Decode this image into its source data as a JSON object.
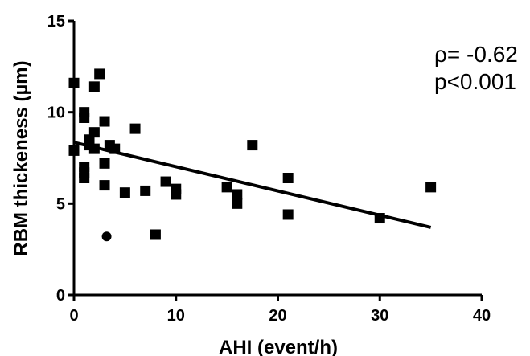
{
  "chart_data": {
    "type": "scatter",
    "title": "",
    "xlabel": "AHI (event/h)",
    "ylabel": "RBM thickeness (µm)",
    "xlim": [
      0,
      40
    ],
    "ylim": [
      0,
      15
    ],
    "xticks": [
      "0",
      "10",
      "20",
      "30",
      "40"
    ],
    "yticks": [
      "0",
      "5",
      "10",
      "15"
    ],
    "grid": false,
    "annotations": [
      "ρ= -0.62",
      "p<0.001"
    ],
    "series": [
      {
        "marker": "square",
        "points": [
          {
            "x": 0.0,
            "y": 11.6
          },
          {
            "x": 0.0,
            "y": 7.9
          },
          {
            "x": 1.0,
            "y": 10.0
          },
          {
            "x": 1.0,
            "y": 9.7
          },
          {
            "x": 1.0,
            "y": 7.0
          },
          {
            "x": 1.0,
            "y": 6.7
          },
          {
            "x": 1.0,
            "y": 6.4
          },
          {
            "x": 1.5,
            "y": 8.5
          },
          {
            "x": 1.5,
            "y": 8.2
          },
          {
            "x": 2.0,
            "y": 11.4
          },
          {
            "x": 2.0,
            "y": 8.9
          },
          {
            "x": 2.0,
            "y": 8.0
          },
          {
            "x": 2.5,
            "y": 12.1
          },
          {
            "x": 3.0,
            "y": 9.5
          },
          {
            "x": 3.0,
            "y": 7.2
          },
          {
            "x": 3.0,
            "y": 6.0
          },
          {
            "x": 3.5,
            "y": 8.2
          },
          {
            "x": 4.0,
            "y": 8.0
          },
          {
            "x": 5.0,
            "y": 5.6
          },
          {
            "x": 6.0,
            "y": 9.1
          },
          {
            "x": 7.0,
            "y": 5.7
          },
          {
            "x": 8.0,
            "y": 3.3
          },
          {
            "x": 9.0,
            "y": 6.2
          },
          {
            "x": 10.0,
            "y": 5.8
          },
          {
            "x": 10.0,
            "y": 5.5
          },
          {
            "x": 15.0,
            "y": 5.9
          },
          {
            "x": 16.0,
            "y": 5.5
          },
          {
            "x": 16.0,
            "y": 5.0
          },
          {
            "x": 17.5,
            "y": 8.2
          },
          {
            "x": 21.0,
            "y": 6.4
          },
          {
            "x": 21.0,
            "y": 4.4
          },
          {
            "x": 30.0,
            "y": 4.2
          },
          {
            "x": 35.0,
            "y": 5.9
          }
        ]
      },
      {
        "marker": "circle",
        "points": [
          {
            "x": 3.2,
            "y": 3.2
          }
        ]
      }
    ],
    "regression_line": {
      "x": [
        0,
        35
      ],
      "y": [
        8.35,
        3.7
      ]
    }
  }
}
